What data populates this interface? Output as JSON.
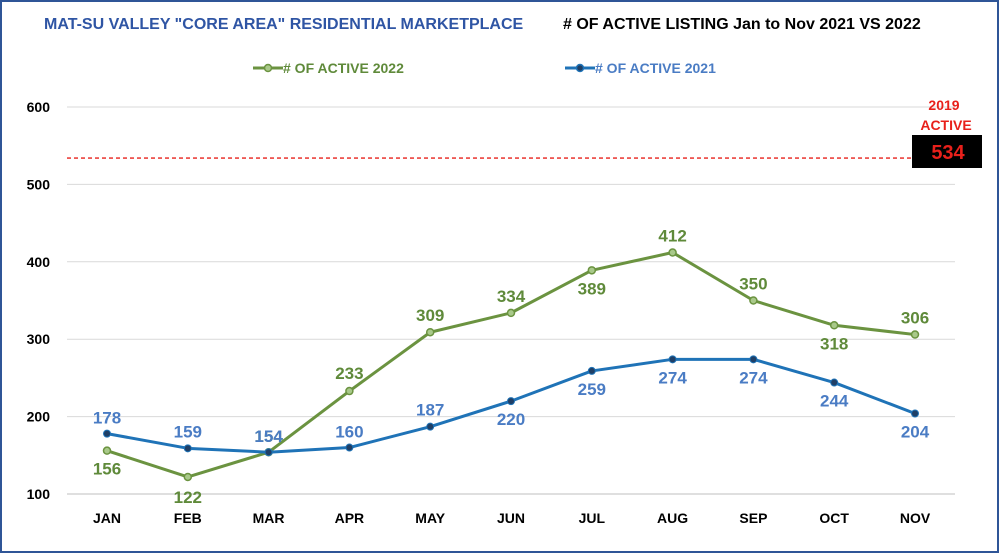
{
  "header": {
    "title_left": "MAT-SU VALLEY \"CORE AREA\" RESIDENTIAL MARKETPLACE",
    "title_right": "# OF ACTIVE LISTING Jan to Nov 2021 VS 2022"
  },
  "colors": {
    "series_2022": "#6b9340",
    "series_2021": "#1f73b7",
    "label_2022": "#5f8a3a",
    "label_2021": "#4a7cc4",
    "reference_line": "#e8201b",
    "frame": "#2f5597",
    "title_left": "#2f55a4"
  },
  "chart_data": {
    "type": "line",
    "categories": [
      "JAN",
      "FEB",
      "MAR",
      "APR",
      "MAY",
      "JUN",
      "JUL",
      "AUG",
      "SEP",
      "OCT",
      "NOV"
    ],
    "series": [
      {
        "name": "# OF ACTIVE 2022",
        "values": [
          156,
          122,
          154,
          233,
          309,
          334,
          389,
          412,
          350,
          318,
          306
        ]
      },
      {
        "name": "# OF ACTIVE 2021",
        "values": [
          178,
          159,
          154,
          160,
          187,
          220,
          259,
          274,
          274,
          244,
          204
        ]
      }
    ],
    "yticks": [
      100,
      200,
      300,
      400,
      500,
      600
    ],
    "ylim": [
      100,
      600
    ],
    "grid": true,
    "legend": "top",
    "reference": {
      "value": 534,
      "label_line1": "2019",
      "label_line2": "ACTIVE",
      "value_label": "534",
      "style": "dashed"
    }
  }
}
